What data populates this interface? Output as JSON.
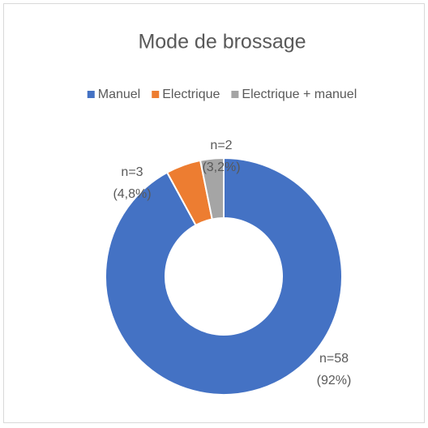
{
  "chart_data": {
    "type": "donut",
    "title": "Mode de brossage",
    "categories": [
      "Manuel",
      "Electrique",
      "Electrique + manuel"
    ],
    "values": [
      58,
      3,
      2
    ],
    "value_labels": [
      [
        "n=58",
        "(92%)"
      ],
      [
        "n=3",
        "(4,8%)"
      ],
      [
        "n=2",
        "(3,2%)"
      ]
    ],
    "colors": [
      "#4472c4",
      "#ed7d31",
      "#a5a5a5"
    ],
    "legend": "top"
  }
}
